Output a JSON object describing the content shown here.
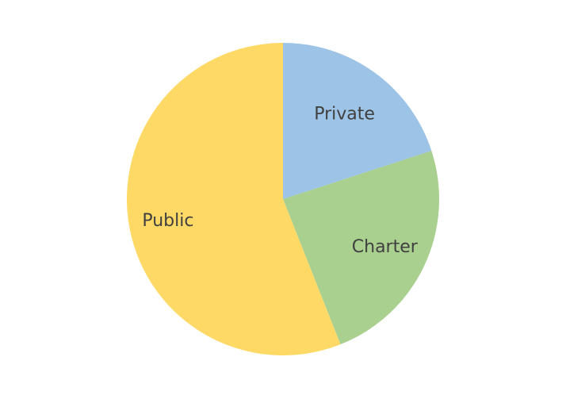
{
  "chart_data": {
    "type": "pie",
    "title": "",
    "legend": "none",
    "slices": [
      {
        "label": "Private",
        "value": 20,
        "color": "#9DC3E6"
      },
      {
        "label": "Charter",
        "value": 24,
        "color": "#A9D08E"
      },
      {
        "label": "Public",
        "value": 56,
        "color": "#FFD966"
      }
    ]
  }
}
